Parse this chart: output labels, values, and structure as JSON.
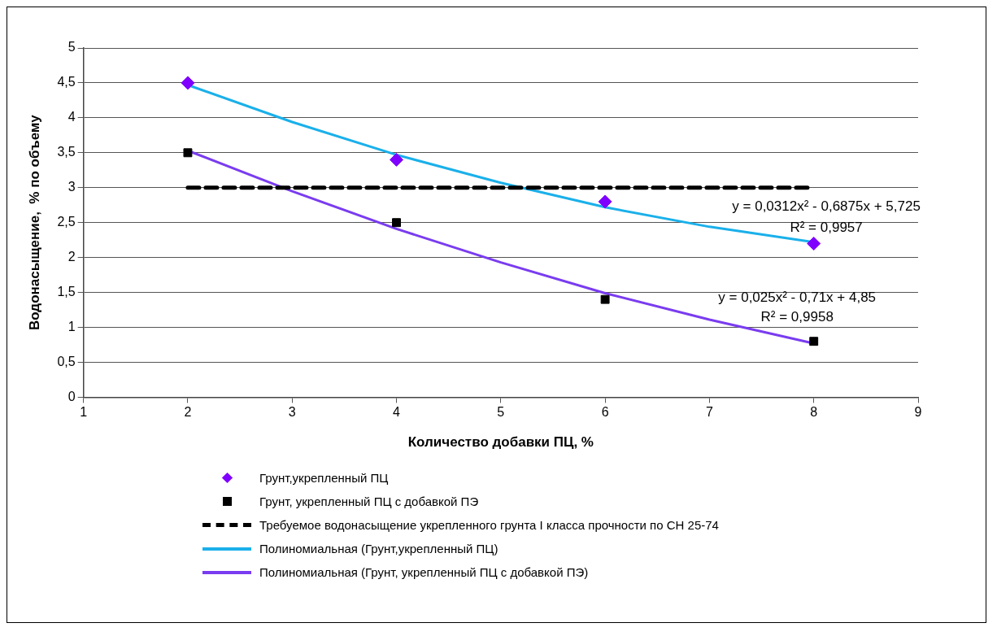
{
  "chart_data": {
    "type": "scatter",
    "xlabel": "Количество добавки ПЦ, %",
    "ylabel": "Водонасыщение,  % по объему",
    "xlim": [
      1,
      9
    ],
    "xticks": [
      1,
      2,
      3,
      4,
      5,
      6,
      7,
      8,
      9
    ],
    "ylim": [
      0,
      5
    ],
    "yticks": [
      0,
      {
        "value": 0.5,
        "label": "0,5"
      },
      1,
      {
        "value": 1.5,
        "label": "1,5"
      },
      2,
      {
        "value": 2.5,
        "label": "2,5"
      },
      3,
      {
        "value": 3.5,
        "label": "3,5"
      },
      4,
      {
        "value": 4.5,
        "label": "4,5"
      },
      5
    ],
    "grid": "y",
    "legend": "bottom",
    "series": [
      {
        "name": "Грунт,укрепленный ПЦ",
        "type": "scatter",
        "marker": "diamond",
        "color": "#7f00ff",
        "x": [
          2,
          4,
          6,
          8
        ],
        "values": [
          4.5,
          3.4,
          2.8,
          2.2
        ]
      },
      {
        "name": "Грунт, укрепленный ПЦ с добавкой ПЭ",
        "type": "scatter",
        "marker": "square",
        "color": "#000000",
        "x": [
          2,
          4,
          6,
          8
        ],
        "values": [
          3.5,
          2.5,
          1.4,
          0.8
        ]
      },
      {
        "name": "Требуемое водонасыщение укрепленного грунта I класса прочности по СН 25-74",
        "type": "line",
        "line_style": "dashed",
        "marker": "none",
        "color": "#000000",
        "x": [
          2,
          8
        ],
        "values": [
          3,
          3
        ]
      },
      {
        "name": "Полиномиальная (Грунт,укрепленный ПЦ)",
        "type": "line",
        "line_style": "solid",
        "marker": "none",
        "color": "#1ab0ea",
        "x": [
          2,
          3,
          4,
          5,
          6,
          7,
          8
        ],
        "values": [
          4.47,
          3.94,
          3.47,
          3.07,
          2.72,
          2.44,
          2.22
        ]
      },
      {
        "name": "Полиномиальная (Грунт, укрепленный ПЦ с добавкой ПЭ)",
        "type": "line",
        "line_style": "solid",
        "marker": "none",
        "color": "#7a3cf0",
        "x": [
          2,
          3,
          4,
          5,
          6,
          7,
          8
        ],
        "values": [
          3.53,
          2.95,
          2.41,
          1.93,
          1.49,
          1.11,
          0.77
        ]
      }
    ],
    "annotations": [
      "y = 0,0312x² - 0,6875x + 5,725",
      "R² = 0,9957",
      "y = 0,025x² - 0,71x + 4,85",
      "R² = 0,9958"
    ]
  }
}
